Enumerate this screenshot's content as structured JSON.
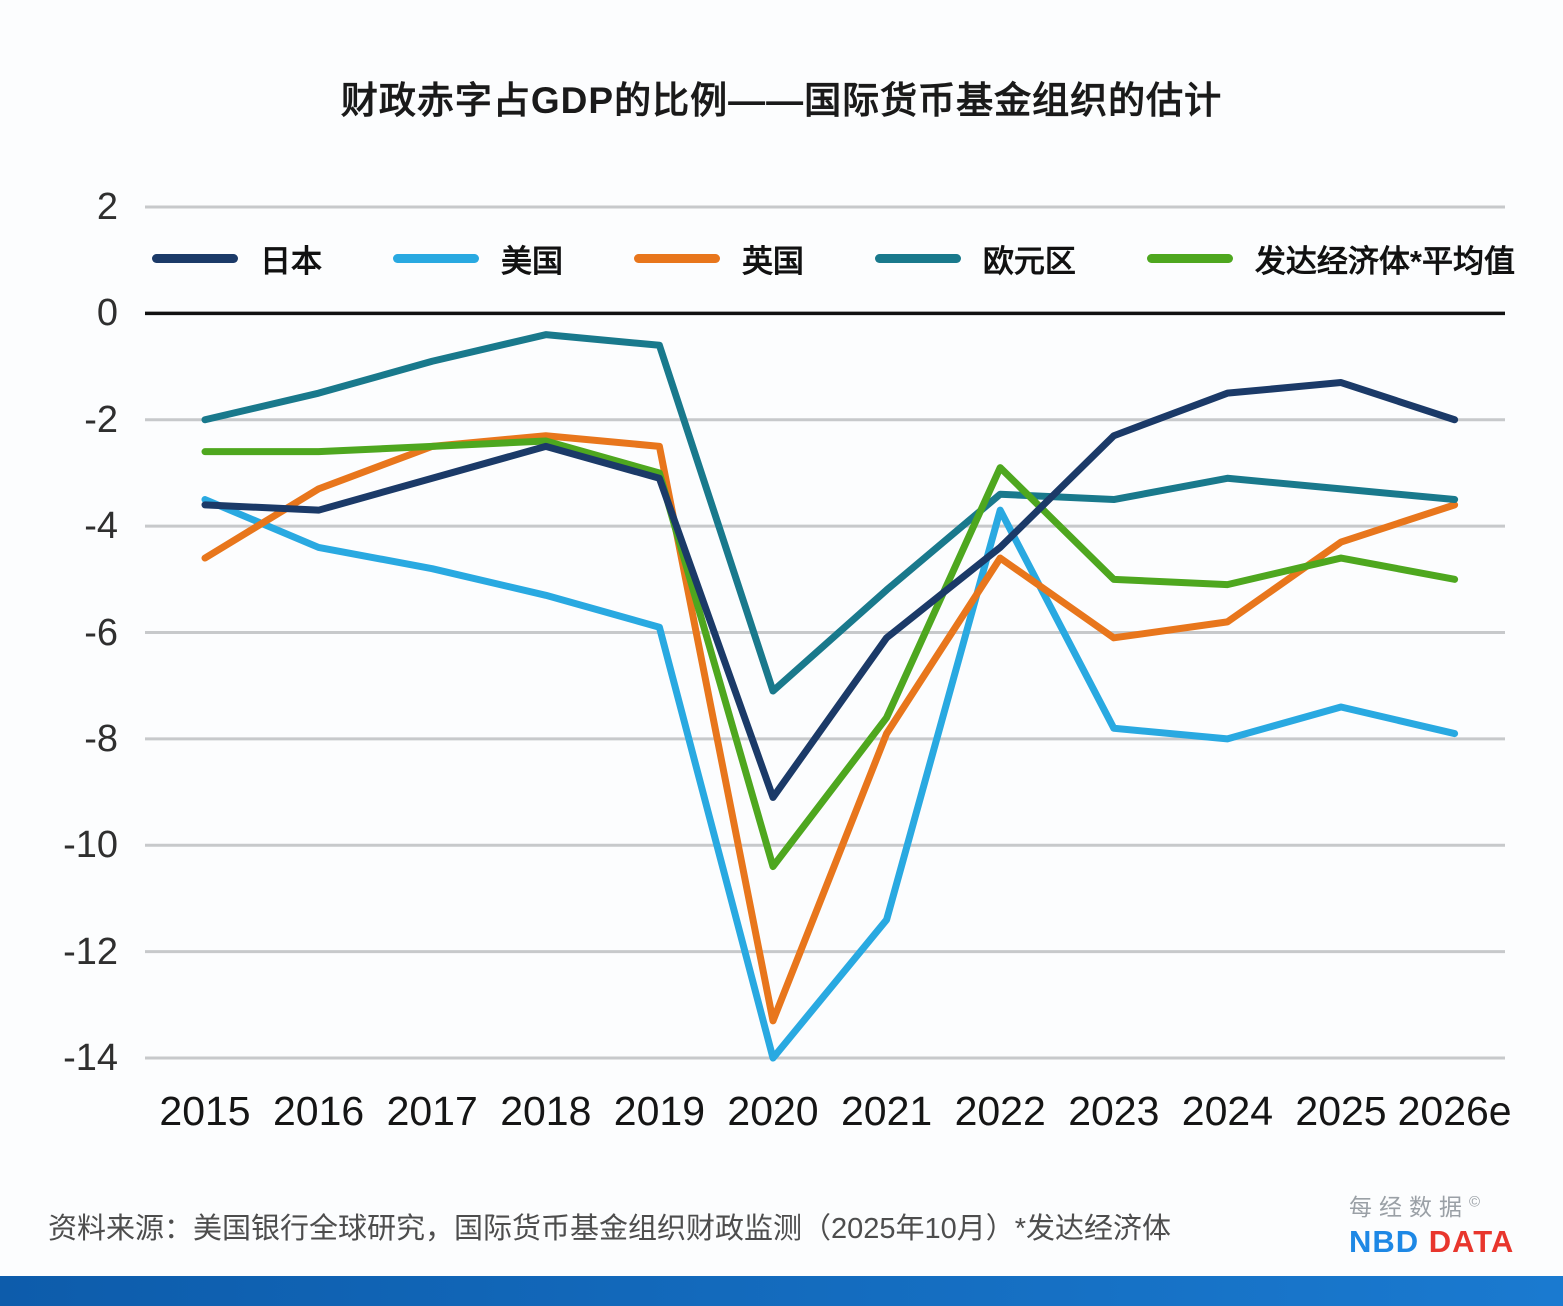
{
  "title": "财政赤字占GDP的比例——国际货币基金组织的估计",
  "source": "资料来源：美国银行全球研究，国际货币基金组织财政监测（2025年10月）*发达经济体",
  "logo": {
    "cn": "每经数据",
    "copyright": "©",
    "nbd": "NBD",
    "data": "DATA"
  },
  "chart_data": {
    "type": "line",
    "x": [
      "2015",
      "2016",
      "2017",
      "2018",
      "2019",
      "2020",
      "2021",
      "2022",
      "2023",
      "2024",
      "2025",
      "2026e"
    ],
    "yticks": [
      2,
      0,
      -2,
      -4,
      -6,
      -8,
      -10,
      -12,
      -14
    ],
    "ylim": [
      -14.6,
      2
    ],
    "grid": true,
    "legend_position": "top-inside",
    "zero_line_color": "#111111",
    "grid_color": "#c7c9cb",
    "series": [
      {
        "name": "日本",
        "color": "#1b3a68",
        "values": [
          -3.6,
          -3.7,
          -3.1,
          -2.5,
          -3.1,
          -9.1,
          -6.1,
          -4.4,
          -2.3,
          -1.5,
          -1.3,
          -2.0
        ]
      },
      {
        "name": "美国",
        "color": "#29a9e1",
        "values": [
          -3.5,
          -4.4,
          -4.8,
          -5.3,
          -5.9,
          -14.0,
          -11.4,
          -3.7,
          -7.8,
          -8.0,
          -7.4,
          -7.9
        ]
      },
      {
        "name": "英国",
        "color": "#e8761c",
        "values": [
          -4.6,
          -3.3,
          -2.5,
          -2.3,
          -2.5,
          -13.3,
          -7.9,
          -4.6,
          -6.1,
          -5.8,
          -4.3,
          -3.6
        ]
      },
      {
        "name": "欧元区",
        "color": "#19798c",
        "values": [
          -2.0,
          -1.5,
          -0.9,
          -0.4,
          -0.6,
          -7.1,
          -5.2,
          -3.4,
          -3.5,
          -3.1,
          -3.3,
          -3.5
        ]
      },
      {
        "name": "发达经济体*平均值",
        "color": "#4ea71f",
        "values": [
          -2.6,
          -2.6,
          -2.5,
          -2.4,
          -3.0,
          -10.4,
          -7.6,
          -2.9,
          -5.0,
          -5.1,
          -4.6,
          -5.0
        ]
      }
    ]
  }
}
